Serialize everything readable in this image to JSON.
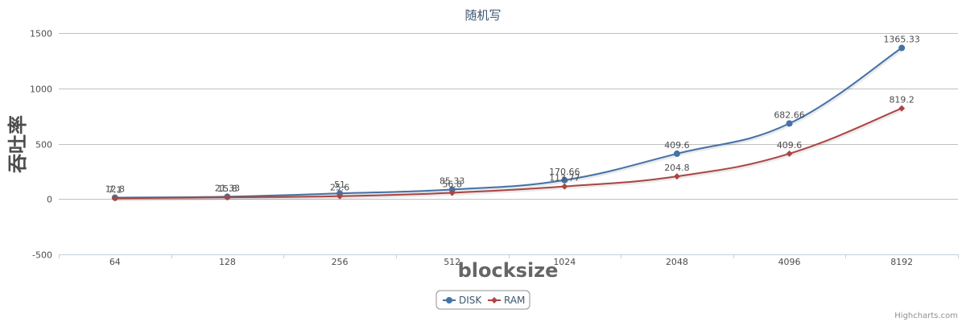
{
  "chart_data": {
    "type": "line",
    "title": "随机写",
    "xlabel": "blocksize",
    "ylabel": "吞吐率",
    "categories": [
      "64",
      "128",
      "256",
      "512",
      "1024",
      "2048",
      "4096",
      "8192"
    ],
    "ylim": [
      -500,
      1500
    ],
    "yticks": [
      -500,
      0,
      500,
      1000,
      1500
    ],
    "grid": true,
    "legend_placement": "bottom-center",
    "series": [
      {
        "name": "DISK",
        "color": "#4572A7",
        "marker": "circle",
        "values": [
          12.8,
          21.33,
          51,
          85.33,
          170.66,
          409.6,
          682.66,
          1365.33
        ],
        "labels": [
          "12.8",
          "21.33",
          "51",
          "85.33",
          "170.66",
          "409.6",
          "682.66",
          "1365.33"
        ]
      },
      {
        "name": "RAM",
        "color": "#AA4643",
        "marker": "diamond",
        "values": [
          7.1,
          15.8,
          25.6,
          56.8,
          113.77,
          204.8,
          409.6,
          819.2
        ],
        "labels": [
          "7.1",
          "15.8",
          "25.6",
          "56.8",
          "113.77",
          "204.8",
          "409.6",
          "819.2"
        ]
      }
    ]
  },
  "credits": "Highcharts.com"
}
